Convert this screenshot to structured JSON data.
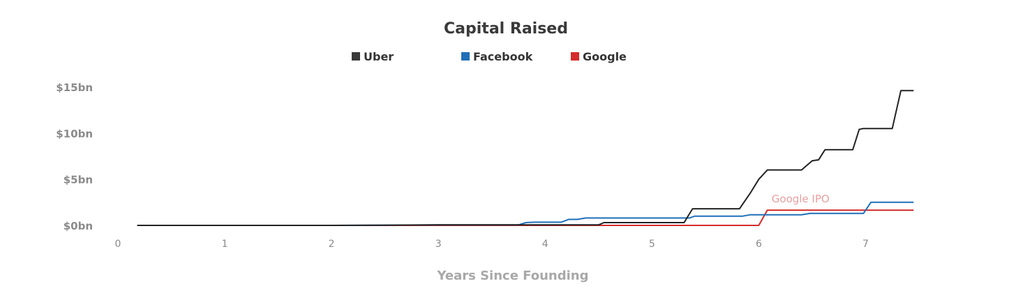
{
  "chart_data": {
    "type": "line",
    "title": "Capital Raised",
    "xlabel": "Years Since Founding",
    "ylabel": "",
    "xlim": [
      0,
      7.5
    ],
    "ylim": [
      0,
      15
    ],
    "x_ticks": [
      0,
      1,
      2,
      3,
      4,
      5,
      6,
      7
    ],
    "x_tick_labels": [
      "0",
      "1",
      "2",
      "3",
      "4",
      "5",
      "6",
      "7"
    ],
    "y_ticks": [
      0,
      5,
      10,
      15
    ],
    "y_tick_labels": [
      "$0bn",
      "$5bn",
      "$10bn",
      "$15bn"
    ],
    "grid": false,
    "legend_position": "top-center",
    "series": [
      {
        "name": "Uber",
        "color": "#222222",
        "legend_color": "#3a3a3a",
        "points": [
          [
            0.18,
            0.0
          ],
          [
            2.0,
            0.0
          ],
          [
            2.5,
            0.02
          ],
          [
            3.0,
            0.05
          ],
          [
            3.7,
            0.05
          ],
          [
            4.5,
            0.05
          ],
          [
            4.55,
            0.3
          ],
          [
            5.3,
            0.3
          ],
          [
            5.38,
            1.8
          ],
          [
            5.82,
            1.8
          ],
          [
            5.92,
            3.5
          ],
          [
            6.0,
            5.0
          ],
          [
            6.08,
            6.0
          ],
          [
            6.4,
            6.0
          ],
          [
            6.5,
            7.0
          ],
          [
            6.56,
            7.1
          ],
          [
            6.62,
            8.2
          ],
          [
            6.88,
            8.2
          ],
          [
            6.94,
            10.4
          ],
          [
            6.98,
            10.5
          ],
          [
            7.25,
            10.5
          ],
          [
            7.33,
            14.6
          ],
          [
            7.45,
            14.6
          ]
        ]
      },
      {
        "name": "Facebook",
        "color": "#1f6fb8",
        "legend_color": "#1f6fb8",
        "points": [
          [
            0.18,
            0.0
          ],
          [
            2.0,
            0.0
          ],
          [
            3.0,
            0.05
          ],
          [
            3.75,
            0.05
          ],
          [
            3.82,
            0.3
          ],
          [
            3.9,
            0.35
          ],
          [
            4.15,
            0.35
          ],
          [
            4.22,
            0.65
          ],
          [
            4.3,
            0.65
          ],
          [
            4.38,
            0.8
          ],
          [
            5.35,
            0.8
          ],
          [
            5.4,
            1.0
          ],
          [
            5.85,
            1.0
          ],
          [
            5.92,
            1.15
          ],
          [
            6.4,
            1.15
          ],
          [
            6.48,
            1.3
          ],
          [
            6.98,
            1.3
          ],
          [
            7.05,
            2.5
          ],
          [
            7.45,
            2.5
          ]
        ]
      },
      {
        "name": "Google",
        "color": "#d62b2b",
        "legend_color": "#d62b2b",
        "points": [
          [
            0.18,
            0.0
          ],
          [
            4.55,
            0.0
          ],
          [
            6.0,
            0.0
          ],
          [
            6.08,
            1.65
          ],
          [
            7.45,
            1.65
          ]
        ]
      }
    ],
    "annotations": [
      {
        "text": "Google IPO",
        "x": 6.12,
        "y": 2.5,
        "color": "#e8a0a0"
      }
    ]
  }
}
